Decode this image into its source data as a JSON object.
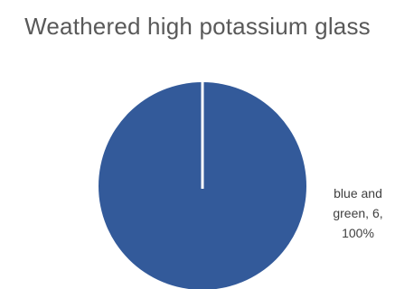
{
  "chart_data": {
    "type": "pie",
    "title": "Weathered high potassium glass",
    "slices": [
      {
        "label": "blue and green",
        "value": 6,
        "percent": "100%",
        "color": "#335A9A"
      }
    ],
    "data_labels": [
      {
        "line1": "blue and",
        "line2": "green, 6,",
        "line3": "100%"
      }
    ],
    "legend": "none"
  }
}
